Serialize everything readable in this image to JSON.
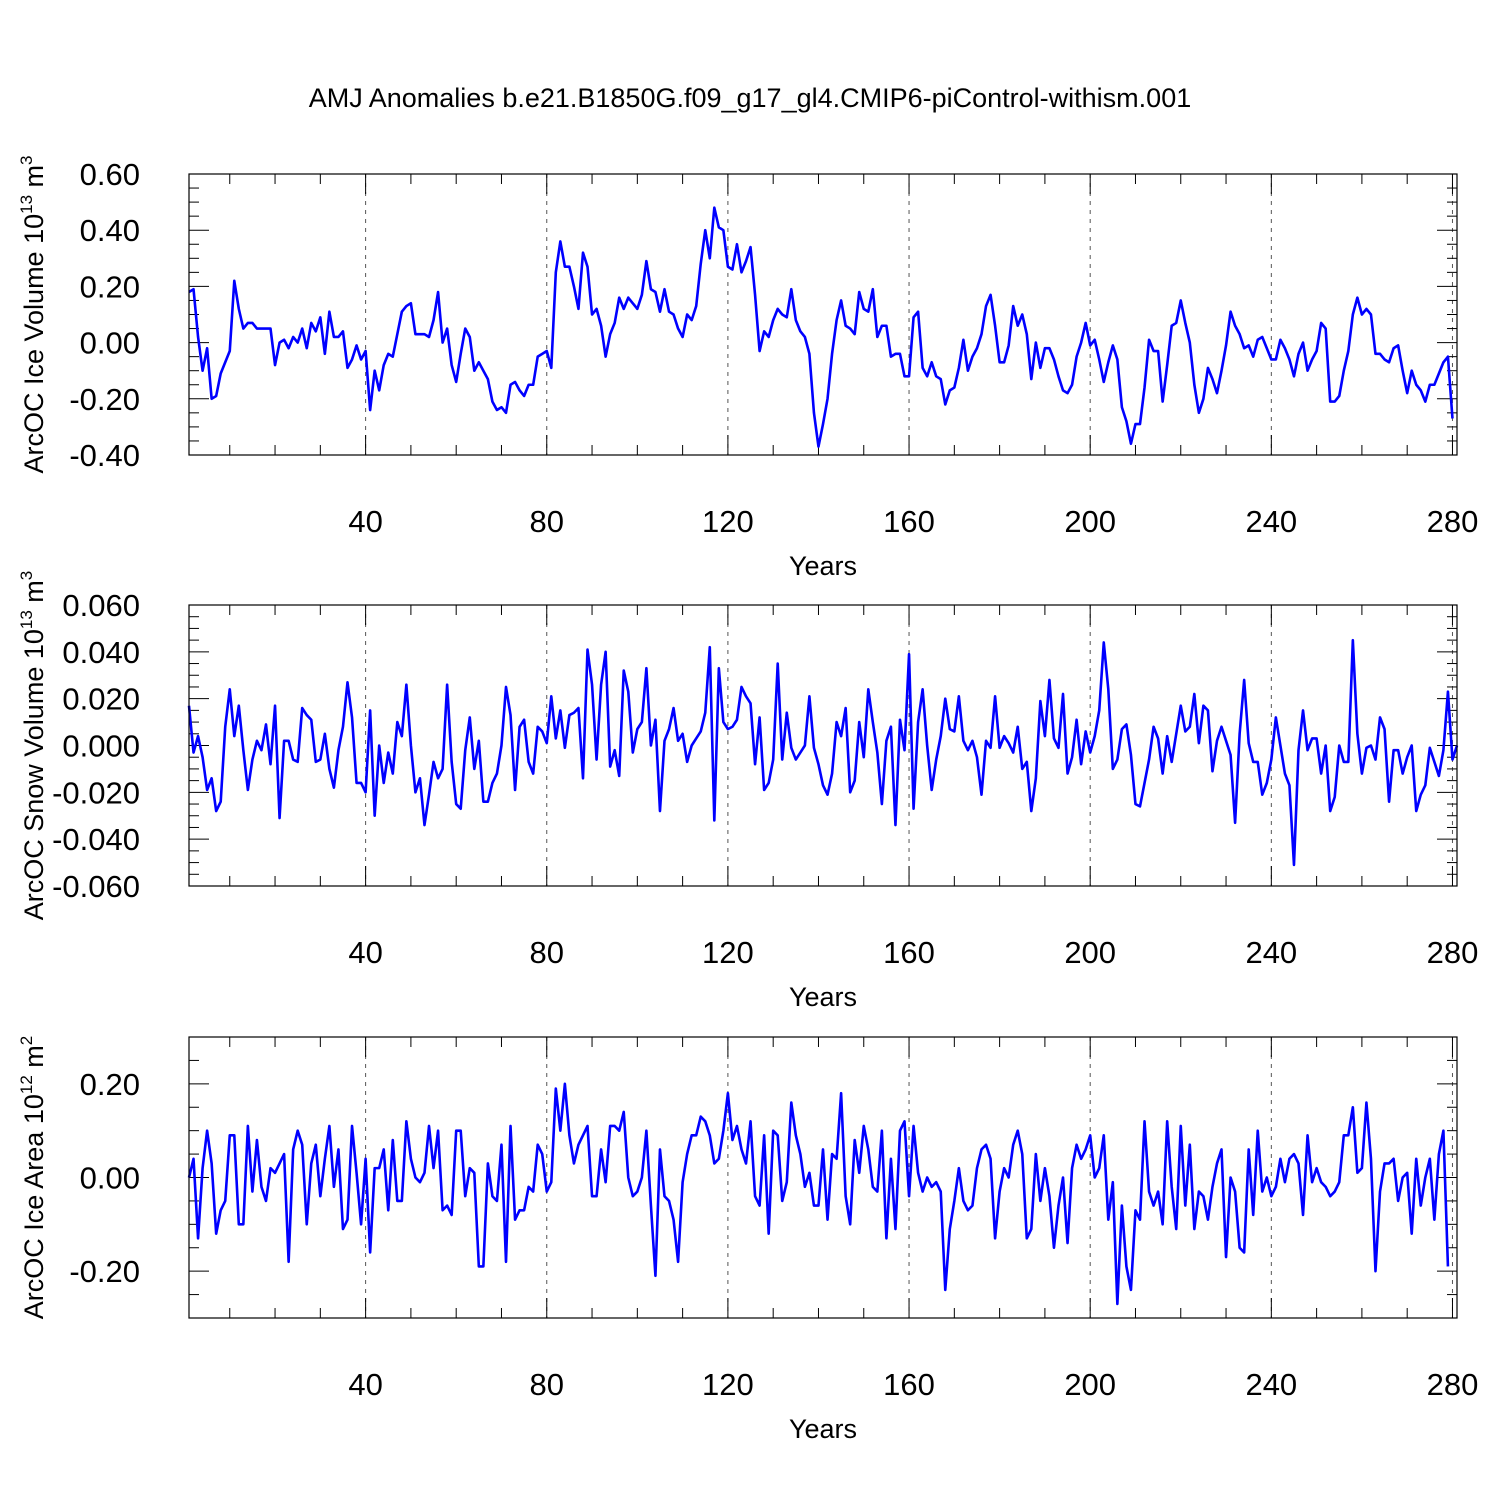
{
  "title": "AMJ Anomalies b.e21.B1850G.f09_g17_gl4.CMIP6-piControl-withism.001",
  "colors": {
    "series": "#0000ff",
    "axis": "#000000",
    "grid": "#555555"
  },
  "chart_data": [
    {
      "type": "line",
      "xlabel": "Years",
      "ylabel": "ArcOC Ice Volume 10",
      "ylabel_sup": "13",
      "ylabel_unit": " m",
      "ylabel_unit_sup": "3",
      "xlim": [
        1,
        281
      ],
      "ylim": [
        -0.4,
        0.6
      ],
      "xticks": [
        40,
        80,
        120,
        160,
        200,
        240,
        280
      ],
      "xtick_labels": [
        "40",
        "80",
        "120",
        "160",
        "200",
        "240",
        "280"
      ],
      "yticks": [
        -0.4,
        -0.2,
        0.0,
        0.2,
        0.4,
        0.6
      ],
      "ytick_labels": [
        "-0.40",
        "-0.20",
        "0.00",
        "0.20",
        "0.40",
        "0.60"
      ],
      "x_minor_step": 10,
      "y_minor_step": 0.05,
      "grid": "vertical dashed at major x ticks",
      "series": [
        {
          "start_year": 1,
          "values": [
            0.18,
            0.19,
            0.02,
            -0.1,
            -0.02,
            -0.2,
            -0.19,
            -0.11,
            -0.07,
            -0.03,
            0.22,
            0.12,
            0.05,
            0.07,
            0.07,
            0.05,
            0.05,
            0.05,
            0.05,
            -0.08,
            0.0,
            0.01,
            -0.02,
            0.02,
            0.0,
            0.05,
            -0.02,
            0.07,
            0.04,
            0.09,
            -0.04,
            0.11,
            0.02,
            0.02,
            0.04,
            -0.09,
            -0.06,
            -0.01,
            -0.06,
            -0.03,
            -0.24,
            -0.1,
            -0.17,
            -0.08,
            -0.04,
            -0.05,
            0.03,
            0.11,
            0.13,
            0.14,
            0.03,
            0.03,
            0.03,
            0.02,
            0.08,
            0.18,
            0.0,
            0.05,
            -0.08,
            -0.14,
            -0.04,
            0.05,
            0.02,
            -0.1,
            -0.07,
            -0.1,
            -0.13,
            -0.21,
            -0.24,
            -0.23,
            -0.25,
            -0.15,
            -0.14,
            -0.17,
            -0.19,
            -0.15,
            -0.15,
            -0.05,
            -0.04,
            -0.03,
            -0.09,
            0.25,
            0.36,
            0.27,
            0.27,
            0.2,
            0.12,
            0.32,
            0.27,
            0.1,
            0.12,
            0.06,
            -0.05,
            0.03,
            0.07,
            0.16,
            0.12,
            0.16,
            0.14,
            0.12,
            0.17,
            0.29,
            0.19,
            0.18,
            0.11,
            0.19,
            0.11,
            0.1,
            0.05,
            0.02,
            0.1,
            0.08,
            0.13,
            0.28,
            0.4,
            0.3,
            0.48,
            0.41,
            0.4,
            0.27,
            0.26,
            0.35,
            0.25,
            0.29,
            0.34,
            0.17,
            -0.03,
            0.04,
            0.02,
            0.08,
            0.12,
            0.1,
            0.09,
            0.19,
            0.08,
            0.04,
            0.02,
            -0.04,
            -0.25,
            -0.37,
            -0.29,
            -0.2,
            -0.04,
            0.08,
            0.15,
            0.06,
            0.05,
            0.03,
            0.18,
            0.12,
            0.11,
            0.19,
            0.02,
            0.06,
            0.06,
            -0.05,
            -0.04,
            -0.04,
            -0.12,
            -0.12,
            0.09,
            0.11,
            -0.09,
            -0.12,
            -0.07,
            -0.12,
            -0.13,
            -0.22,
            -0.17,
            -0.16,
            -0.09,
            0.01,
            -0.1,
            -0.05,
            -0.02,
            0.03,
            0.13,
            0.17,
            0.06,
            -0.07,
            -0.07,
            -0.01,
            0.13,
            0.06,
            0.1,
            0.03,
            -0.13,
            0.0,
            -0.09,
            -0.02,
            -0.02,
            -0.06,
            -0.12,
            -0.17,
            -0.18,
            -0.15,
            -0.05,
            0.0,
            0.07,
            -0.01,
            0.01,
            -0.06,
            -0.14,
            -0.07,
            -0.01,
            -0.06,
            -0.23,
            -0.28,
            -0.36,
            -0.29,
            -0.29,
            -0.16,
            0.01,
            -0.03,
            -0.03,
            -0.21,
            -0.08,
            0.06,
            0.07,
            0.15,
            0.07,
            0.0,
            -0.15,
            -0.25,
            -0.2,
            -0.09,
            -0.13,
            -0.18,
            -0.1,
            -0.01,
            0.11,
            0.06,
            0.03,
            -0.02,
            -0.01,
            -0.05,
            0.01,
            0.02,
            -0.02,
            -0.06,
            -0.06,
            0.01,
            -0.02,
            -0.06,
            -0.12,
            -0.04,
            0.0,
            -0.1,
            -0.06,
            -0.03,
            0.07,
            0.05,
            -0.21,
            -0.21,
            -0.19,
            -0.1,
            -0.03,
            0.1,
            0.16,
            0.1,
            0.12,
            0.1,
            -0.04,
            -0.04,
            -0.06,
            -0.07,
            -0.02,
            -0.01,
            -0.1,
            -0.18,
            -0.1,
            -0.15,
            -0.17,
            -0.21,
            -0.15,
            -0.15,
            -0.11,
            -0.07,
            -0.05,
            -0.27
          ]
        }
      ]
    },
    {
      "type": "line",
      "xlabel": "Years",
      "ylabel": "ArcOC Snow Volume 10",
      "ylabel_sup": "13",
      "ylabel_unit": " m",
      "ylabel_unit_sup": "3",
      "xlim": [
        1,
        281
      ],
      "ylim": [
        -0.06,
        0.06
      ],
      "xticks": [
        40,
        80,
        120,
        160,
        200,
        240,
        280
      ],
      "xtick_labels": [
        "40",
        "80",
        "120",
        "160",
        "200",
        "240",
        "280"
      ],
      "yticks": [
        -0.06,
        -0.04,
        -0.02,
        0.0,
        0.02,
        0.04,
        0.06
      ],
      "ytick_labels": [
        "-0.060",
        "-0.040",
        "-0.020",
        "0.000",
        "0.020",
        "0.040",
        "0.060"
      ],
      "x_minor_step": 10,
      "y_minor_step": 0.005,
      "grid": "vertical dashed at major x ticks",
      "series": [
        {
          "start_year": 1,
          "values": [
            0.017,
            -0.003,
            0.004,
            -0.005,
            -0.019,
            -0.014,
            -0.028,
            -0.024,
            0.008,
            0.024,
            0.004,
            0.017,
            -0.002,
            -0.019,
            -0.006,
            0.002,
            -0.002,
            0.009,
            -0.008,
            0.017,
            -0.031,
            0.002,
            0.002,
            -0.006,
            -0.007,
            0.016,
            0.013,
            0.011,
            -0.007,
            -0.006,
            0.005,
            -0.01,
            -0.018,
            -0.002,
            0.008,
            0.027,
            0.012,
            -0.016,
            -0.016,
            -0.02,
            0.015,
            -0.03,
            0.0,
            -0.016,
            -0.003,
            -0.012,
            0.01,
            0.004,
            0.026,
            0.0,
            -0.02,
            -0.014,
            -0.034,
            -0.021,
            -0.007,
            -0.014,
            -0.01,
            0.026,
            -0.007,
            -0.025,
            -0.027,
            -0.002,
            0.012,
            -0.01,
            0.002,
            -0.024,
            -0.024,
            -0.016,
            -0.012,
            0.0,
            0.025,
            0.013,
            -0.019,
            0.008,
            0.011,
            -0.007,
            -0.012,
            0.008,
            0.006,
            0.001,
            0.021,
            0.003,
            0.015,
            -0.001,
            0.013,
            0.014,
            0.016,
            -0.014,
            0.041,
            0.026,
            -0.006,
            0.026,
            0.04,
            -0.009,
            -0.002,
            -0.013,
            0.032,
            0.023,
            -0.003,
            0.007,
            0.01,
            0.033,
            0.0,
            0.011,
            -0.028,
            0.002,
            0.007,
            0.016,
            0.002,
            0.005,
            -0.007,
            0.0,
            0.003,
            0.006,
            0.014,
            0.042,
            -0.032,
            0.033,
            0.01,
            0.007,
            0.008,
            0.011,
            0.025,
            0.021,
            0.018,
            -0.008,
            0.012,
            -0.019,
            -0.016,
            -0.006,
            0.035,
            -0.006,
            0.014,
            -0.001,
            -0.006,
            -0.003,
            0.0,
            0.021,
            -0.001,
            -0.008,
            -0.017,
            -0.021,
            -0.012,
            0.01,
            0.004,
            0.016,
            -0.02,
            -0.015,
            0.01,
            -0.005,
            0.024,
            0.01,
            -0.003,
            -0.025,
            0.002,
            0.008,
            -0.034,
            0.011,
            -0.002,
            0.039,
            -0.027,
            0.01,
            0.024,
            0.0,
            -0.019,
            -0.006,
            0.004,
            0.02,
            0.007,
            0.006,
            0.021,
            0.002,
            -0.002,
            0.002,
            -0.005,
            -0.021,
            0.002,
            -0.001,
            0.021,
            -0.001,
            0.004,
            0.001,
            -0.003,
            0.008,
            -0.01,
            -0.007,
            -0.028,
            -0.014,
            0.019,
            0.004,
            0.028,
            0.003,
            -0.001,
            0.022,
            -0.012,
            -0.005,
            0.011,
            -0.008,
            0.006,
            -0.003,
            0.004,
            0.015,
            0.044,
            0.024,
            -0.01,
            -0.006,
            0.007,
            0.009,
            -0.004,
            -0.025,
            -0.026,
            -0.016,
            -0.006,
            0.008,
            0.003,
            -0.012,
            0.004,
            -0.007,
            0.005,
            0.017,
            0.006,
            0.008,
            0.022,
            0.001,
            0.017,
            0.015,
            -0.011,
            0.002,
            0.008,
            0.002,
            -0.004,
            -0.033,
            0.005,
            0.028,
            0.001,
            -0.007,
            -0.007,
            -0.021,
            -0.016,
            -0.006,
            0.012,
            0.0,
            -0.012,
            -0.017,
            -0.051,
            -0.002,
            0.015,
            -0.002,
            0.003,
            0.003,
            -0.012,
            0.0,
            -0.028,
            -0.022,
            0.0,
            -0.007,
            -0.007,
            0.045,
            0.005,
            -0.012,
            -0.001,
            0.0,
            -0.006,
            0.012,
            0.007,
            -0.024,
            -0.002,
            -0.002,
            -0.012,
            -0.005,
            0.0,
            -0.028,
            -0.021,
            -0.017,
            -0.001,
            -0.007,
            -0.013,
            -0.002,
            0.023,
            -0.006,
            0.0
          ]
        }
      ]
    },
    {
      "type": "line",
      "xlabel": "Years",
      "ylabel": "ArcOC Ice Area 10",
      "ylabel_sup": "12",
      "ylabel_unit": " m",
      "ylabel_unit_sup": "2",
      "xlim": [
        1,
        281
      ],
      "ylim": [
        -0.3,
        0.3
      ],
      "xticks": [
        40,
        80,
        120,
        160,
        200,
        240,
        280
      ],
      "xtick_labels": [
        "40",
        "80",
        "120",
        "160",
        "200",
        "240",
        "280"
      ],
      "yticks": [
        -0.2,
        0.0,
        0.2
      ],
      "ytick_labels": [
        "-0.20",
        "0.00",
        "0.20"
      ],
      "x_minor_step": 10,
      "y_minor_step": 0.05,
      "grid": "vertical dashed at major x ticks",
      "series": [
        {
          "start_year": 1,
          "values": [
            0.0,
            0.04,
            -0.13,
            0.02,
            0.1,
            0.03,
            -0.12,
            -0.07,
            -0.05,
            0.09,
            0.09,
            -0.1,
            -0.1,
            0.11,
            -0.03,
            0.08,
            -0.02,
            -0.05,
            0.02,
            0.01,
            0.03,
            0.05,
            -0.18,
            0.06,
            0.1,
            0.07,
            -0.1,
            0.03,
            0.07,
            -0.04,
            0.04,
            0.11,
            -0.02,
            0.06,
            -0.11,
            -0.09,
            0.11,
            0.01,
            -0.1,
            0.04,
            -0.16,
            0.02,
            0.02,
            0.06,
            -0.07,
            0.08,
            -0.05,
            -0.05,
            0.12,
            0.04,
            0.0,
            -0.01,
            0.01,
            0.11,
            0.02,
            0.1,
            -0.07,
            -0.06,
            -0.08,
            0.1,
            0.1,
            -0.04,
            0.02,
            0.01,
            -0.19,
            -0.19,
            0.03,
            -0.04,
            -0.05,
            0.07,
            -0.18,
            0.11,
            -0.09,
            -0.07,
            -0.07,
            -0.02,
            -0.03,
            0.07,
            0.05,
            -0.03,
            -0.01,
            0.19,
            0.1,
            0.2,
            0.09,
            0.03,
            0.07,
            0.09,
            0.11,
            -0.04,
            -0.04,
            0.06,
            -0.01,
            0.11,
            0.11,
            0.1,
            0.14,
            0.0,
            -0.04,
            -0.03,
            0.0,
            0.1,
            -0.06,
            -0.21,
            0.06,
            -0.04,
            -0.05,
            -0.09,
            -0.18,
            -0.01,
            0.05,
            0.09,
            0.09,
            0.13,
            0.12,
            0.09,
            0.03,
            0.04,
            0.1,
            0.18,
            0.08,
            0.11,
            0.06,
            0.03,
            0.12,
            -0.04,
            -0.06,
            0.09,
            -0.12,
            0.1,
            0.09,
            -0.05,
            -0.01,
            0.16,
            0.09,
            0.05,
            -0.02,
            0.01,
            -0.06,
            -0.06,
            0.06,
            -0.09,
            0.05,
            0.04,
            0.18,
            -0.04,
            -0.1,
            0.08,
            0.01,
            0.11,
            0.06,
            -0.02,
            -0.03,
            0.1,
            -0.13,
            0.04,
            -0.11,
            0.1,
            0.12,
            -0.04,
            0.11,
            0.01,
            -0.03,
            0.0,
            -0.02,
            -0.01,
            -0.03,
            -0.24,
            -0.11,
            -0.05,
            0.02,
            -0.05,
            -0.07,
            -0.06,
            0.02,
            0.06,
            0.07,
            0.04,
            -0.13,
            -0.03,
            0.02,
            0.0,
            0.07,
            0.1,
            0.05,
            -0.13,
            -0.11,
            0.05,
            -0.05,
            0.02,
            -0.04,
            -0.15,
            -0.06,
            0.0,
            -0.14,
            0.02,
            0.07,
            0.04,
            0.06,
            0.09,
            0.0,
            0.02,
            0.09,
            -0.09,
            -0.01,
            -0.27,
            -0.06,
            -0.19,
            -0.24,
            -0.07,
            -0.09,
            0.12,
            -0.03,
            -0.06,
            -0.03,
            -0.1,
            0.12,
            -0.02,
            -0.11,
            0.11,
            -0.06,
            0.07,
            -0.11,
            -0.03,
            -0.04,
            -0.09,
            -0.02,
            0.03,
            0.06,
            -0.17,
            0.0,
            -0.03,
            -0.15,
            -0.16,
            0.06,
            -0.08,
            0.1,
            -0.03,
            0.0,
            -0.04,
            -0.02,
            0.04,
            -0.01,
            0.04,
            0.05,
            0.03,
            -0.08,
            0.09,
            -0.01,
            0.02,
            -0.01,
            -0.02,
            -0.04,
            -0.03,
            -0.01,
            0.09,
            0.09,
            0.15,
            0.01,
            0.02,
            0.16,
            0.04,
            -0.2,
            -0.03,
            0.03,
            0.03,
            0.04,
            -0.05,
            0.0,
            0.01,
            -0.12,
            0.04,
            -0.06,
            0.0,
            0.04,
            -0.09,
            0.05,
            0.1,
            -0.19
          ]
        }
      ]
    }
  ]
}
